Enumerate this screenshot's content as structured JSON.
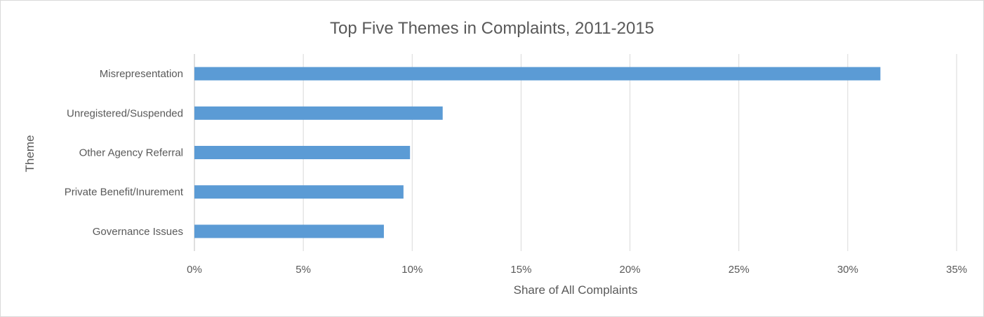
{
  "chart_data": {
    "type": "bar",
    "orientation": "horizontal",
    "title": "Top Five Themes in Complaints, 2011-2015",
    "xlabel": "Share of All Complaints",
    "ylabel": "Theme",
    "categories": [
      "Misrepresentation",
      "Unregistered/Suspended",
      "Other Agency Referral",
      "Private Benefit/Inurement",
      "Governance Issues"
    ],
    "values": [
      31.5,
      11.4,
      9.9,
      9.6,
      8.7
    ],
    "xlim": [
      0,
      35
    ],
    "xticks": [
      "0%",
      "5%",
      "10%",
      "15%",
      "20%",
      "25%",
      "30%",
      "35%"
    ],
    "grid": "vertical",
    "legend": "none",
    "bar_color": "#5b9bd5"
  }
}
